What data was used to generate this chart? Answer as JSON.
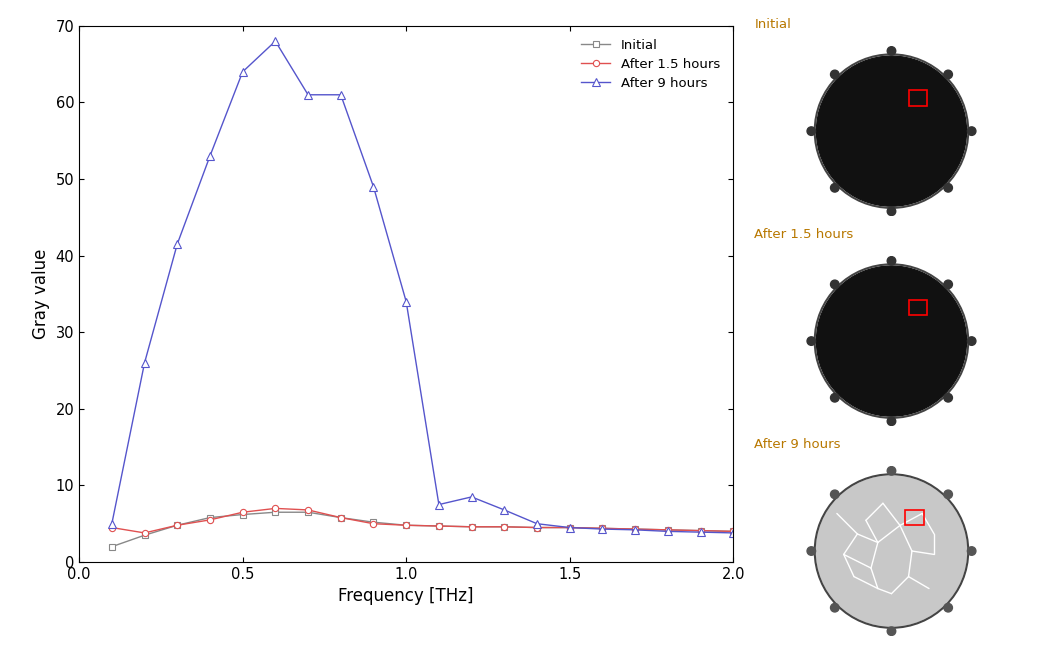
{
  "title": "",
  "xlabel": "Frequency [THz]",
  "ylabel": "Gray value",
  "xlim": [
    0.0,
    2.0
  ],
  "ylim": [
    0,
    70
  ],
  "yticks": [
    0,
    10,
    20,
    30,
    40,
    50,
    60,
    70
  ],
  "xticks": [
    0.0,
    0.5,
    1.0,
    1.5,
    2.0
  ],
  "initial_x": [
    0.1,
    0.2,
    0.3,
    0.4,
    0.5,
    0.6,
    0.7,
    0.8,
    0.9,
    1.0,
    1.1,
    1.2,
    1.3,
    1.4,
    1.5,
    1.6,
    1.7,
    1.8,
    1.9,
    2.0
  ],
  "initial_y": [
    2.0,
    3.5,
    4.8,
    5.8,
    6.2,
    6.5,
    6.5,
    5.8,
    5.2,
    4.8,
    4.7,
    4.6,
    4.6,
    4.5,
    4.5,
    4.4,
    4.3,
    4.2,
    4.1,
    4.0
  ],
  "after15_x": [
    0.1,
    0.2,
    0.3,
    0.4,
    0.5,
    0.6,
    0.7,
    0.8,
    0.9,
    1.0,
    1.1,
    1.2,
    1.3,
    1.4,
    1.5,
    1.6,
    1.7,
    1.8,
    1.9,
    2.0
  ],
  "after15_y": [
    4.5,
    3.8,
    4.8,
    5.5,
    6.5,
    7.0,
    6.8,
    5.8,
    5.0,
    4.8,
    4.7,
    4.6,
    4.6,
    4.5,
    4.5,
    4.4,
    4.3,
    4.2,
    4.1,
    4.0
  ],
  "after9_x": [
    0.1,
    0.2,
    0.3,
    0.4,
    0.5,
    0.6,
    0.7,
    0.8,
    0.9,
    1.0,
    1.1,
    1.2,
    1.3,
    1.4,
    1.5,
    1.6,
    1.7,
    1.8,
    1.9,
    2.0
  ],
  "after9_y": [
    5.0,
    26.0,
    41.5,
    53.0,
    64.0,
    68.0,
    61.0,
    61.0,
    49.0,
    34.0,
    7.5,
    8.5,
    6.8,
    5.0,
    4.5,
    4.3,
    4.2,
    4.0,
    3.9,
    3.8
  ],
  "initial_color": "#888888",
  "after15_color": "#e05050",
  "after9_color": "#5555cc",
  "legend_labels": [
    "Initial",
    "After 1.5 hours",
    "After 9 hours"
  ],
  "label_color": "#b87800",
  "img1_label": "Initial",
  "img2_label": "After 1.5 hours",
  "img3_label": "After 9 hours",
  "crack_lines": [
    [
      [
        0.18,
        0.72
      ],
      [
        0.3,
        0.6
      ]
    ],
    [
      [
        0.3,
        0.6
      ],
      [
        0.22,
        0.48
      ]
    ],
    [
      [
        0.22,
        0.48
      ],
      [
        0.28,
        0.35
      ]
    ],
    [
      [
        0.28,
        0.35
      ],
      [
        0.42,
        0.28
      ]
    ],
    [
      [
        0.3,
        0.6
      ],
      [
        0.42,
        0.55
      ]
    ],
    [
      [
        0.42,
        0.55
      ],
      [
        0.38,
        0.4
      ]
    ],
    [
      [
        0.38,
        0.4
      ],
      [
        0.42,
        0.28
      ]
    ],
    [
      [
        0.42,
        0.55
      ],
      [
        0.55,
        0.65
      ]
    ],
    [
      [
        0.55,
        0.65
      ],
      [
        0.68,
        0.72
      ]
    ],
    [
      [
        0.55,
        0.65
      ],
      [
        0.62,
        0.5
      ]
    ],
    [
      [
        0.62,
        0.5
      ],
      [
        0.75,
        0.48
      ]
    ],
    [
      [
        0.62,
        0.5
      ],
      [
        0.6,
        0.35
      ]
    ],
    [
      [
        0.6,
        0.35
      ],
      [
        0.72,
        0.28
      ]
    ],
    [
      [
        0.6,
        0.35
      ],
      [
        0.5,
        0.25
      ]
    ],
    [
      [
        0.5,
        0.25
      ],
      [
        0.42,
        0.28
      ]
    ],
    [
      [
        0.42,
        0.55
      ],
      [
        0.35,
        0.68
      ]
    ],
    [
      [
        0.35,
        0.68
      ],
      [
        0.45,
        0.78
      ]
    ],
    [
      [
        0.45,
        0.78
      ],
      [
        0.55,
        0.65
      ]
    ],
    [
      [
        0.22,
        0.48
      ],
      [
        0.38,
        0.4
      ]
    ],
    [
      [
        0.68,
        0.72
      ],
      [
        0.75,
        0.6
      ]
    ],
    [
      [
        0.75,
        0.6
      ],
      [
        0.75,
        0.48
      ]
    ]
  ]
}
